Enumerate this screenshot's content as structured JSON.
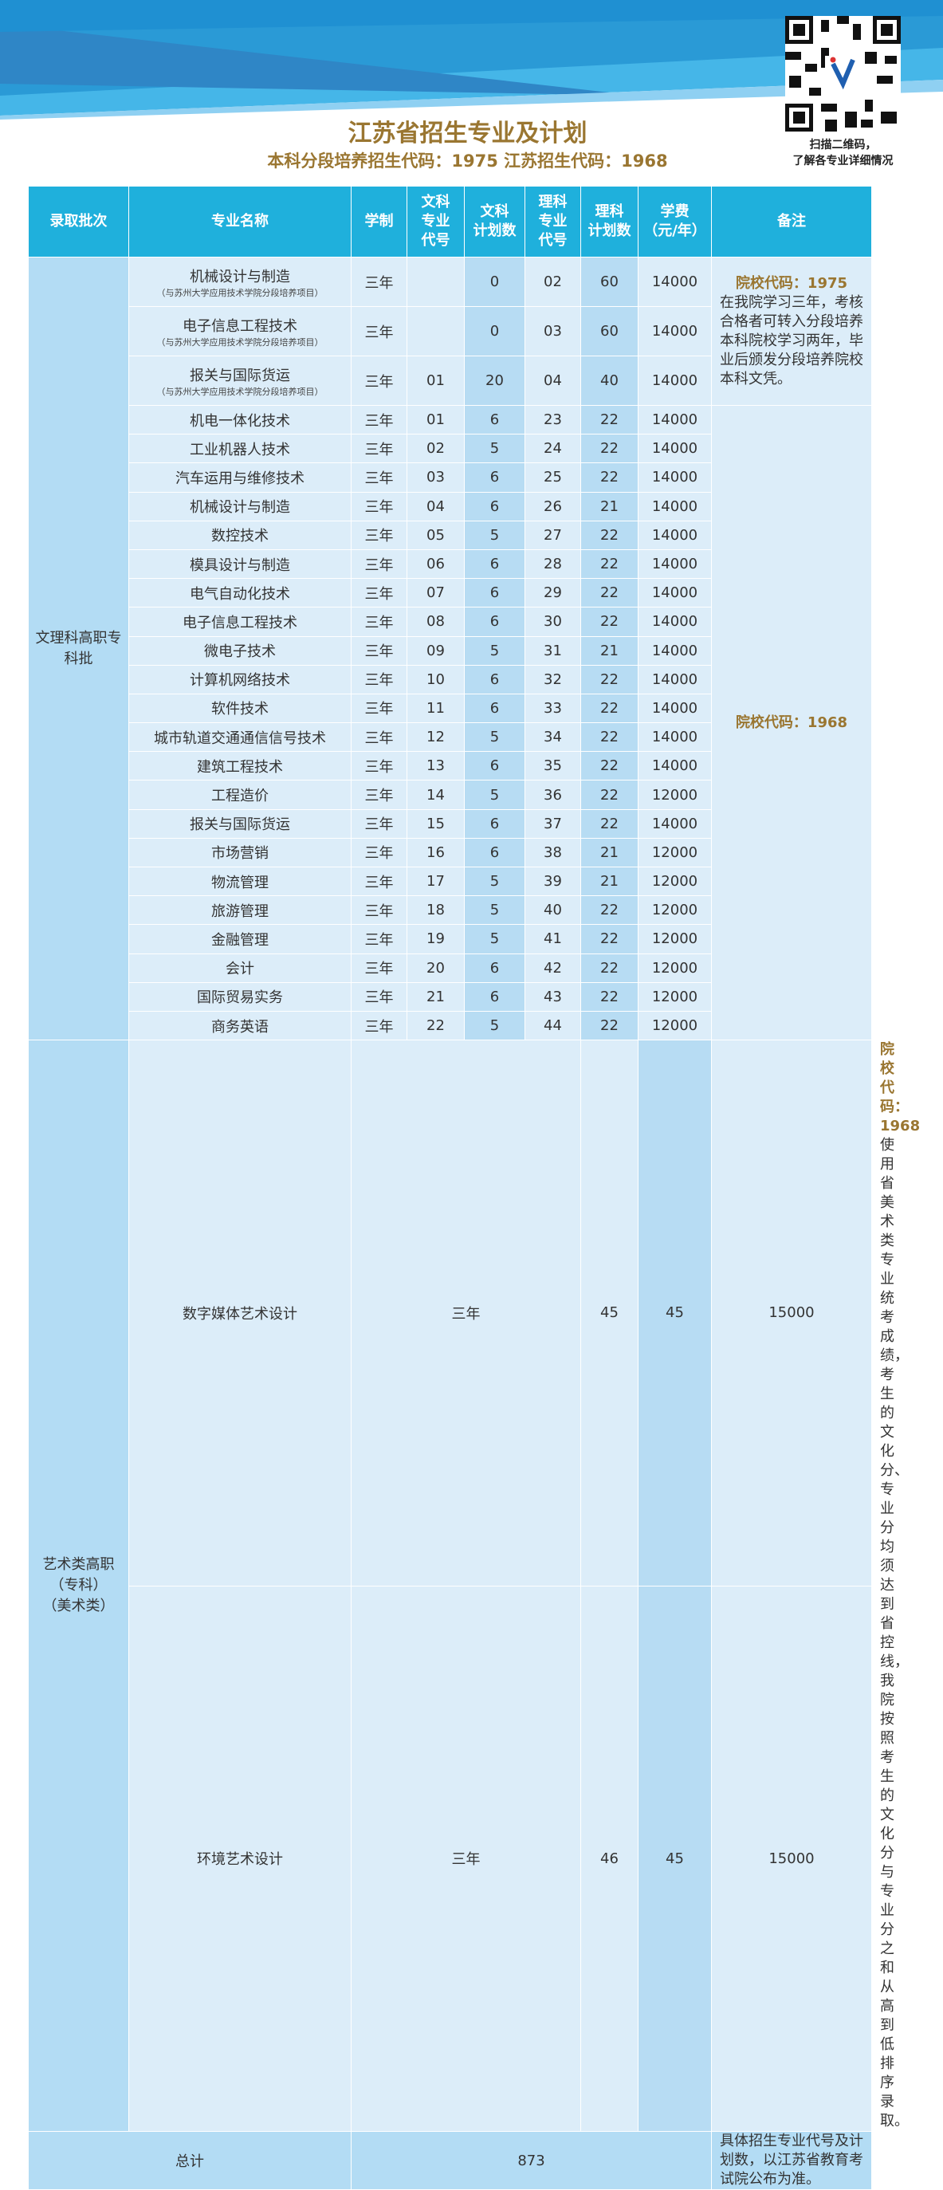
{
  "title": "江苏省招生专业及计划",
  "subtitle": "本科分段培养招生代码：1975  江苏招生代码：1968",
  "qr_caption": [
    "扫描二维码，",
    "了解各专业详细情况"
  ],
  "headers": [
    "录取批次",
    "专业名称",
    "学制",
    "文科专业代号",
    "文科计划数",
    "理科专业代号",
    "理科计划数",
    "学费（元/年）",
    "备注"
  ],
  "batches": {
    "main": "文理科高职专科批",
    "art": "艺术类高职（专科）（美术类）"
  },
  "project_note": "（与苏州大学应用技术学院分段培养项目）",
  "segment_rows": [
    {
      "name": "机械设计与制造",
      "years": "三年",
      "wen_code": "",
      "wen_plan": "0",
      "li_code": "02",
      "li_plan": "60",
      "fee": "14000"
    },
    {
      "name": "电子信息工程技术",
      "years": "三年",
      "wen_code": "",
      "wen_plan": "0",
      "li_code": "03",
      "li_plan": "60",
      "fee": "14000"
    },
    {
      "name": "报关与国际货运",
      "years": "三年",
      "wen_code": "01",
      "wen_plan": "20",
      "li_code": "04",
      "li_plan": "40",
      "fee": "14000"
    }
  ],
  "rows": [
    {
      "name": "机电一体化技术",
      "years": "三年",
      "wen_code": "01",
      "wen_plan": "6",
      "li_code": "23",
      "li_plan": "22",
      "fee": "14000"
    },
    {
      "name": "工业机器人技术",
      "years": "三年",
      "wen_code": "02",
      "wen_plan": "5",
      "li_code": "24",
      "li_plan": "22",
      "fee": "14000"
    },
    {
      "name": "汽车运用与维修技术",
      "years": "三年",
      "wen_code": "03",
      "wen_plan": "6",
      "li_code": "25",
      "li_plan": "22",
      "fee": "14000"
    },
    {
      "name": "机械设计与制造",
      "years": "三年",
      "wen_code": "04",
      "wen_plan": "6",
      "li_code": "26",
      "li_plan": "21",
      "fee": "14000"
    },
    {
      "name": "数控技术",
      "years": "三年",
      "wen_code": "05",
      "wen_plan": "5",
      "li_code": "27",
      "li_plan": "22",
      "fee": "14000"
    },
    {
      "name": "模具设计与制造",
      "years": "三年",
      "wen_code": "06",
      "wen_plan": "6",
      "li_code": "28",
      "li_plan": "22",
      "fee": "14000"
    },
    {
      "name": "电气自动化技术",
      "years": "三年",
      "wen_code": "07",
      "wen_plan": "6",
      "li_code": "29",
      "li_plan": "22",
      "fee": "14000"
    },
    {
      "name": "电子信息工程技术",
      "years": "三年",
      "wen_code": "08",
      "wen_plan": "6",
      "li_code": "30",
      "li_plan": "22",
      "fee": "14000"
    },
    {
      "name": "微电子技术",
      "years": "三年",
      "wen_code": "09",
      "wen_plan": "5",
      "li_code": "31",
      "li_plan": "21",
      "fee": "14000"
    },
    {
      "name": "计算机网络技术",
      "years": "三年",
      "wen_code": "10",
      "wen_plan": "6",
      "li_code": "32",
      "li_plan": "22",
      "fee": "14000"
    },
    {
      "name": "软件技术",
      "years": "三年",
      "wen_code": "11",
      "wen_plan": "6",
      "li_code": "33",
      "li_plan": "22",
      "fee": "14000"
    },
    {
      "name": "城市轨道交通通信信号技术",
      "years": "三年",
      "wen_code": "12",
      "wen_plan": "5",
      "li_code": "34",
      "li_plan": "22",
      "fee": "14000"
    },
    {
      "name": "建筑工程技术",
      "years": "三年",
      "wen_code": "13",
      "wen_plan": "6",
      "li_code": "35",
      "li_plan": "22",
      "fee": "14000"
    },
    {
      "name": "工程造价",
      "years": "三年",
      "wen_code": "14",
      "wen_plan": "5",
      "li_code": "36",
      "li_plan": "22",
      "fee": "12000"
    },
    {
      "name": "报关与国际货运",
      "years": "三年",
      "wen_code": "15",
      "wen_plan": "6",
      "li_code": "37",
      "li_plan": "22",
      "fee": "14000"
    },
    {
      "name": "市场营销",
      "years": "三年",
      "wen_code": "16",
      "wen_plan": "6",
      "li_code": "38",
      "li_plan": "21",
      "fee": "12000"
    },
    {
      "name": "物流管理",
      "years": "三年",
      "wen_code": "17",
      "wen_plan": "5",
      "li_code": "39",
      "li_plan": "21",
      "fee": "12000"
    },
    {
      "name": "旅游管理",
      "years": "三年",
      "wen_code": "18",
      "wen_plan": "5",
      "li_code": "40",
      "li_plan": "22",
      "fee": "12000"
    },
    {
      "name": "金融管理",
      "years": "三年",
      "wen_code": "19",
      "wen_plan": "5",
      "li_code": "41",
      "li_plan": "22",
      "fee": "12000"
    },
    {
      "name": "会计",
      "years": "三年",
      "wen_code": "20",
      "wen_plan": "6",
      "li_code": "42",
      "li_plan": "22",
      "fee": "12000"
    },
    {
      "name": "国际贸易实务",
      "years": "三年",
      "wen_code": "21",
      "wen_plan": "6",
      "li_code": "43",
      "li_plan": "22",
      "fee": "12000"
    },
    {
      "name": "商务英语",
      "years": "三年",
      "wen_code": "22",
      "wen_plan": "5",
      "li_code": "44",
      "li_plan": "22",
      "fee": "12000"
    }
  ],
  "art_rows": [
    {
      "name": "数字媒体艺术设计",
      "years": "三年",
      "li_code": "45",
      "li_plan": "45",
      "fee": "15000"
    },
    {
      "name": "环境艺术设计",
      "years": "三年",
      "li_code": "46",
      "li_plan": "45",
      "fee": "15000"
    }
  ],
  "notes": {
    "segment_code": "院校代码：1975",
    "segment_text": "在我院学习三年，考核合格者可转入分段培养本科院校学习两年，毕业后颁发分段培养院校本科文凭。",
    "main_code": "院校代码：1968",
    "art_code": "院校代码：1968",
    "art_text": "使用省美术类专业统考成绩，考生的文化分、专业分均须达到省控线，我院按照考生的文化分与专业分之和从高到低排序录取。",
    "total_text": "具体招生专业代号及计划数，以江苏省教育考试院公布为准。"
  },
  "total": {
    "label": "总计",
    "value": "873"
  },
  "colors": {
    "header": "#1fb0dc",
    "gold": "#9a7631",
    "cell": "#dcedf9",
    "plan_cell": "#b7dcf3"
  }
}
